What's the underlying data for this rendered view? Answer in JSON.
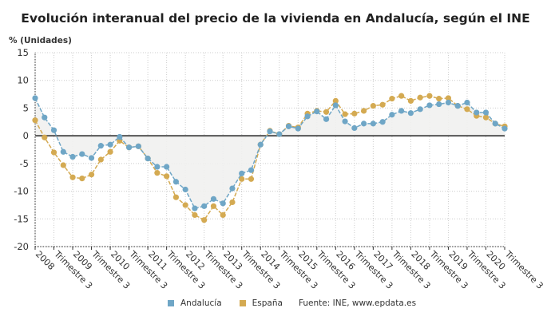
{
  "chart_data": {
    "type": "line",
    "title": "Evolución interanual del precio de la vivienda en Andalucía, según el INE",
    "ylabel": "% (Unidades)",
    "ylim": [
      -20,
      15
    ],
    "yticks": [
      15,
      10,
      5,
      0,
      -5,
      -10,
      -15,
      -20
    ],
    "grid": true,
    "legend_placement": "bottom",
    "xtick_labels": [
      "2008",
      "Trimestre 3",
      "2009",
      "Trimestre 3",
      "2010",
      "Trimestre 3",
      "2011",
      "Trimestre 3",
      "2012",
      "Trimestre 3",
      "2013",
      "Trimestre 3",
      "2014",
      "Trimestre 3",
      "2015",
      "Trimestre 3",
      "2016",
      "Trimestre 3",
      "2017",
      "Trimestre 3",
      "2018",
      "Trimestre 3",
      "2019",
      "Trimestre 3",
      "2020",
      "Trimestre 3"
    ],
    "x_start": "2008 Q1",
    "x_end": "2020 Q3",
    "series": [
      {
        "name": "Andalucía",
        "color": "#6fa6c6",
        "values": [
          6.8,
          3.3,
          1.0,
          -2.9,
          -3.8,
          -3.3,
          -4.0,
          -1.8,
          -1.6,
          -0.2,
          -2.1,
          -1.9,
          -4.1,
          -5.6,
          -5.6,
          -8.3,
          -9.7,
          -13.1,
          -12.7,
          -11.4,
          -12.2,
          -9.5,
          -6.8,
          -6.2,
          -1.6,
          0.8,
          0.3,
          1.7,
          1.3,
          3.5,
          4.4,
          3.0,
          5.5,
          2.6,
          1.4,
          2.2,
          2.2,
          2.5,
          3.8,
          4.5,
          4.1,
          4.8,
          5.5,
          5.7,
          6.0,
          5.4,
          6.0,
          4.2,
          4.2,
          2.2,
          1.3
        ]
      },
      {
        "name": "España",
        "color": "#d4aa52",
        "values": [
          2.8,
          -0.3,
          -3.0,
          -5.3,
          -7.5,
          -7.7,
          -7.0,
          -4.3,
          -2.9,
          -0.9,
          -2.1,
          -1.9,
          -4.1,
          -6.7,
          -7.3,
          -11.1,
          -12.5,
          -14.3,
          -15.2,
          -12.7,
          -14.3,
          -12.0,
          -7.8,
          -7.8,
          -1.6,
          0.9,
          0.3,
          1.8,
          1.5,
          4.0,
          4.5,
          4.3,
          6.3,
          3.9,
          4.0,
          4.5,
          5.4,
          5.6,
          6.7,
          7.2,
          6.3,
          6.9,
          7.2,
          6.7,
          6.8,
          5.4,
          4.8,
          3.6,
          3.3,
          2.2,
          1.7
        ]
      }
    ]
  },
  "source": "Fuente: INE, www.epdata.es"
}
